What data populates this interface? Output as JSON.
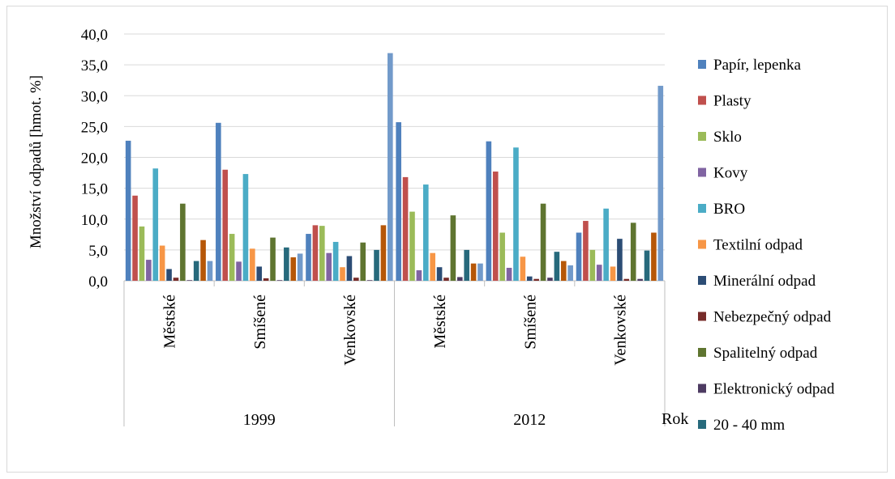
{
  "chart_data": {
    "type": "bar",
    "ylabel": "Množství odpadů [hmot. %]",
    "xlabel": "Rok",
    "ylim": [
      0,
      40
    ],
    "y_ticks": [
      "0,0",
      "5,0",
      "10,0",
      "15,0",
      "20,0",
      "25,0",
      "30,0",
      "35,0",
      "40,0"
    ],
    "grid": true,
    "legend_position": "right",
    "groups": [
      {
        "label": "1999",
        "categories": [
          "Městské",
          "Smíšené",
          "Venkovské"
        ]
      },
      {
        "label": "2012",
        "categories": [
          "Městské",
          "Smíšené",
          "Venkovské"
        ]
      }
    ],
    "categories": [
      "Městské",
      "Smíšené",
      "Venkovské",
      "Městské",
      "Smíšené",
      "Venkovské"
    ],
    "series": [
      {
        "name": "Papír, lepenka",
        "color": "#4f81bd",
        "values": [
          22.7,
          25.6,
          7.6,
          25.7,
          22.6,
          7.8
        ]
      },
      {
        "name": "Plasty",
        "color": "#c0504d",
        "values": [
          13.8,
          18.0,
          9.0,
          16.8,
          17.7,
          9.7
        ]
      },
      {
        "name": "Sklo",
        "color": "#9bbb59",
        "values": [
          8.8,
          7.6,
          8.9,
          11.2,
          7.8,
          5.0
        ]
      },
      {
        "name": "Kovy",
        "color": "#8064a2",
        "values": [
          3.4,
          3.1,
          4.5,
          1.7,
          2.1,
          2.6
        ]
      },
      {
        "name": "BRO",
        "color": "#4bacc6",
        "values": [
          18.2,
          17.3,
          6.3,
          15.6,
          21.6,
          11.7
        ]
      },
      {
        "name": "Textilní odpad",
        "color": "#f79646",
        "values": [
          5.7,
          5.2,
          2.2,
          4.5,
          3.9,
          2.3
        ]
      },
      {
        "name": "Minerální odpad",
        "color": "#2c4d75",
        "values": [
          1.9,
          2.3,
          4.0,
          2.2,
          0.7,
          6.8
        ]
      },
      {
        "name": "Nebezpečný odpad",
        "color": "#772c2a",
        "values": [
          0.5,
          0.4,
          0.5,
          0.5,
          0.3,
          0.3
        ]
      },
      {
        "name": "Spalitelný odpad",
        "color": "#5f7530",
        "values": [
          12.5,
          7.0,
          6.2,
          10.6,
          12.5,
          9.4
        ]
      },
      {
        "name": "Elektronický odpad",
        "color": "#4d3b62",
        "values": [
          0.1,
          0.1,
          0.1,
          0.6,
          0.5,
          0.3
        ]
      },
      {
        "name": "20 - 40 mm",
        "color": "#276a7c",
        "values": [
          3.2,
          5.4,
          5.0,
          5.0,
          4.7,
          4.9
        ]
      },
      {
        "name": "",
        "color": "#b65708",
        "values": [
          6.6,
          3.8,
          9.0,
          2.8,
          3.2,
          7.8
        ]
      },
      {
        "name": "",
        "color": "#729aca",
        "values": [
          3.2,
          4.4,
          36.9,
          2.8,
          2.5,
          31.6
        ]
      }
    ]
  }
}
